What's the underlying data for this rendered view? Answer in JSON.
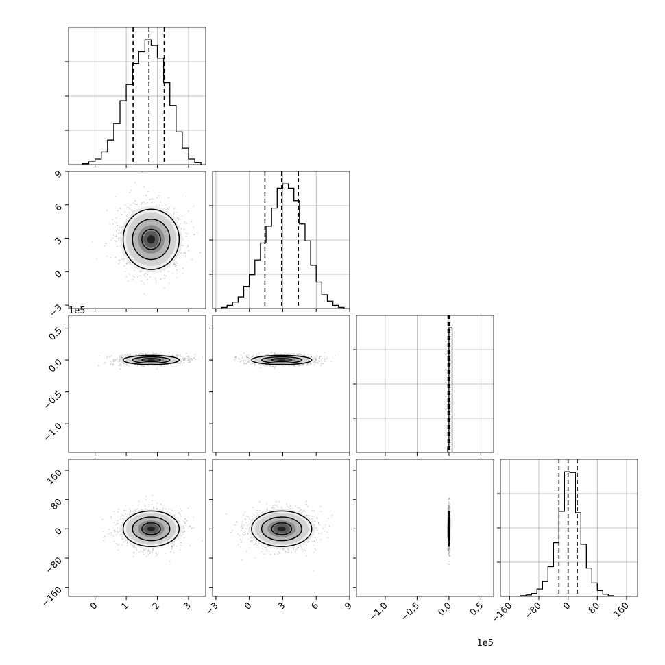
{
  "chart_data": {
    "type": "corner",
    "title": "",
    "grid": true,
    "colors": {
      "hist": "#000000",
      "grid": "#b0b0b0",
      "density": "#000000",
      "quantile": "#000000"
    },
    "quantiles": [
      0.16,
      0.5,
      0.84
    ],
    "params": [
      {
        "label": "",
        "range": [
          -0.85,
          3.55
        ],
        "ticks": [
          0,
          1,
          2,
          3
        ],
        "tick_labels": [
          "0",
          "1",
          "2",
          "3"
        ],
        "offset_label": "",
        "quantile_values": [
          1.22,
          1.73,
          2.22
        ],
        "hist": {
          "edges": [
            -0.4,
            -0.2,
            0.0,
            0.2,
            0.4,
            0.6,
            0.8,
            1.0,
            1.2,
            1.4,
            1.6,
            1.8,
            2.0,
            2.2,
            2.4,
            2.6,
            2.8,
            3.0,
            3.2,
            3.4
          ],
          "counts": [
            1,
            3,
            6,
            14,
            27,
            45,
            70,
            88,
            111,
            124,
            137,
            131,
            117,
            90,
            65,
            36,
            18,
            6,
            2
          ]
        }
      },
      {
        "label": "",
        "range": [
          -3.3,
          9.0
        ],
        "ticks": [
          -3,
          0,
          3,
          6,
          9
        ],
        "tick_labels": [
          "−3",
          "0",
          "3",
          "6",
          "9"
        ],
        "offset_label": "",
        "quantile_values": [
          1.4,
          2.9,
          4.4
        ],
        "hist": {
          "edges": [
            -2.5,
            -2.0,
            -1.5,
            -1.0,
            -0.5,
            0.0,
            0.5,
            1.0,
            1.5,
            2.0,
            2.5,
            3.0,
            3.5,
            4.0,
            4.5,
            5.0,
            5.5,
            6.0,
            6.5,
            7.0,
            7.5,
            8.0,
            8.5
          ],
          "counts": [
            1,
            3,
            6,
            11,
            21,
            32,
            46,
            62,
            78,
            95,
            114,
            118,
            114,
            102,
            80,
            64,
            41,
            25,
            13,
            7,
            3,
            1
          ]
        }
      },
      {
        "label": "",
        "range": [
          -145000,
          70000
        ],
        "ticks": [
          -100000,
          -50000,
          0,
          50000
        ],
        "tick_labels": [
          "−1.0",
          "−0.5",
          "0.0",
          "0.5"
        ],
        "offset_label": "1e5",
        "quantile_values": [
          -1500,
          0,
          1500
        ],
        "hist": {
          "edges": [
            -2000,
            0,
            5000
          ],
          "counts": [
            8,
            200
          ]
        }
      },
      {
        "label": "",
        "range": [
          -185,
          190
        ],
        "ticks": [
          -160,
          -80,
          0,
          80,
          160
        ],
        "tick_labels": [
          "−160",
          "−80",
          "0",
          "80",
          "160"
        ],
        "offset_label": "",
        "quantile_values": [
          -25,
          0,
          25
        ],
        "hist": {
          "edges": [
            -130,
            -115,
            -100,
            -85,
            -70,
            -55,
            -40,
            -25,
            -10,
            5,
            20,
            35,
            50,
            65,
            80,
            95,
            110,
            125
          ],
          "counts": [
            1,
            2,
            4,
            10,
            20,
            40,
            72,
            114,
            167,
            166,
            112,
            70,
            38,
            18,
            8,
            3,
            1
          ]
        }
      }
    ],
    "joint": [
      {
        "row": 1,
        "col": 0,
        "mean": [
          1.8,
          2.9
        ],
        "sd": [
          0.5,
          1.5
        ],
        "levels_sd": [
          0.6,
          1.2,
          1.8
        ]
      },
      {
        "row": 2,
        "col": 0,
        "mean": [
          1.8,
          0
        ],
        "sd": [
          0.5,
          4000
        ],
        "levels_sd": [
          0.6,
          1.2,
          1.8
        ]
      },
      {
        "row": 2,
        "col": 1,
        "mean": [
          2.9,
          0
        ],
        "sd": [
          1.5,
          4000
        ],
        "levels_sd": [
          0.6,
          1.2,
          1.8
        ]
      },
      {
        "row": 3,
        "col": 0,
        "mean": [
          1.8,
          0
        ],
        "sd": [
          0.5,
          27
        ],
        "levels_sd": [
          0.6,
          1.2,
          1.8
        ]
      },
      {
        "row": 3,
        "col": 1,
        "mean": [
          2.9,
          0
        ],
        "sd": [
          1.5,
          27
        ],
        "levels_sd": [
          0.6,
          1.2,
          1.8
        ]
      },
      {
        "row": 3,
        "col": 2,
        "mean": [
          0,
          0
        ],
        "sd": [
          800,
          27
        ],
        "levels_sd": [
          0.6,
          1.2,
          1.8
        ]
      }
    ]
  }
}
